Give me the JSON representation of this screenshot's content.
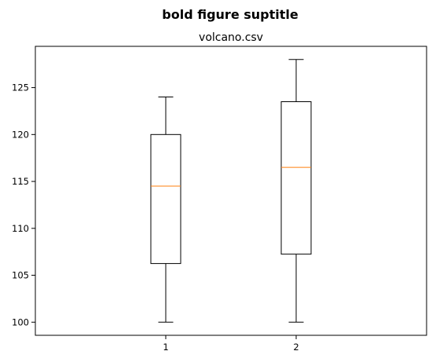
{
  "chart_data": {
    "type": "boxplot",
    "suptitle": "bold figure suptitle",
    "title": "volcano.csv",
    "xlabel": "",
    "ylabel": "",
    "categories": [
      "1",
      "2"
    ],
    "boxes": [
      {
        "label": "1",
        "whisker_low": 100,
        "q1": 106.25,
        "median": 114.5,
        "q3": 120,
        "whisker_high": 124
      },
      {
        "label": "2",
        "whisker_low": 100,
        "q1": 107.25,
        "median": 116.5,
        "q3": 123.5,
        "whisker_high": 128
      }
    ],
    "ylim": [
      98.6,
      129.4
    ],
    "yticks": [
      100,
      105,
      110,
      115,
      120,
      125
    ],
    "grid": false,
    "colors": {
      "box": "#000000",
      "median": "#ff7f0e"
    }
  }
}
